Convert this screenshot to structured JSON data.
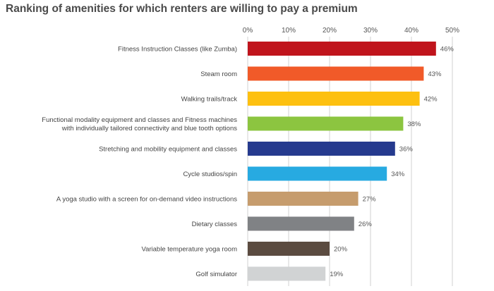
{
  "chart_data": {
    "type": "bar",
    "orientation": "horizontal",
    "title": "Ranking of amenities for which renters are willing to pay a premium",
    "xlabel": "",
    "ylabel": "",
    "xlim": [
      0,
      50
    ],
    "ticks": [
      "0%",
      "10%",
      "20%",
      "30%",
      "40%",
      "50%"
    ],
    "tick_values": [
      0,
      10,
      20,
      30,
      40,
      50
    ],
    "grid": true,
    "categories": [
      [
        "Fitness Instruction Classes (like Zumba)"
      ],
      [
        "Steam room"
      ],
      [
        "Walking trails/track"
      ],
      [
        "Functional modality equipment and classes and Fitness machines",
        "with individually tailored connectivity and blue tooth options"
      ],
      [
        "Stretching and mobility equipment and classes"
      ],
      [
        "Cycle studios/spin"
      ],
      [
        "A yoga studio with a screen for on-demand video instructions"
      ],
      [
        "Dietary classes"
      ],
      [
        "Variable temperature yoga room"
      ],
      [
        "Golf simulator"
      ]
    ],
    "values": [
      46,
      43,
      42,
      38,
      36,
      34,
      27,
      26,
      20,
      19
    ],
    "value_labels": [
      "46%",
      "43%",
      "42%",
      "38%",
      "36%",
      "34%",
      "27%",
      "26%",
      "20%",
      "19%"
    ],
    "colors": [
      "#c0141c",
      "#f15a29",
      "#fdc010",
      "#8cc540",
      "#253a8e",
      "#27aae1",
      "#c69c6d",
      "#808285",
      "#5b4b40",
      "#d1d3d4"
    ]
  }
}
